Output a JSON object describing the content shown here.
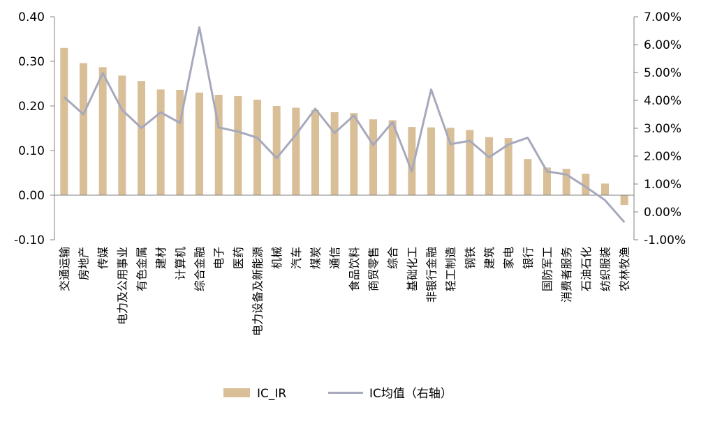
{
  "chart_data": {
    "type": "bar",
    "categories": [
      "交通运输",
      "房地产",
      "传媒",
      "电力及公用事业",
      "有色金属",
      "建材",
      "计算机",
      "综合金融",
      "电子",
      "医药",
      "电力设备及新能源",
      "机械",
      "汽车",
      "煤炭",
      "通信",
      "食品饮料",
      "商贸零售",
      "综合",
      "基础化工",
      "非银行金融",
      "轻工制造",
      "钢铁",
      "建筑",
      "家电",
      "银行",
      "国防军工",
      "消费者服务",
      "石油石化",
      "纺织服装",
      "农林牧渔"
    ],
    "series": [
      {
        "name": "IC_IR",
        "type": "bar",
        "axis": "left",
        "color": "#D9BF98",
        "values": [
          0.33,
          0.296,
          0.287,
          0.268,
          0.256,
          0.237,
          0.236,
          0.23,
          0.225,
          0.222,
          0.214,
          0.2,
          0.196,
          0.191,
          0.186,
          0.184,
          0.17,
          0.168,
          0.153,
          0.152,
          0.151,
          0.146,
          0.13,
          0.128,
          0.081,
          0.062,
          0.059,
          0.048,
          0.026,
          -0.022
        ]
      },
      {
        "name": "IC均值（右轴）",
        "type": "line",
        "axis": "right",
        "color": "#A6A9BC",
        "values": [
          0.0412,
          0.035,
          0.0498,
          0.0366,
          0.0301,
          0.0357,
          0.0319,
          0.0662,
          0.0303,
          0.0288,
          0.0266,
          0.0193,
          0.0277,
          0.037,
          0.0283,
          0.0346,
          0.024,
          0.0322,
          0.0145,
          0.0439,
          0.0243,
          0.0255,
          0.0196,
          0.0242,
          0.0266,
          0.0145,
          0.0134,
          0.009,
          0.0042,
          -0.0037
        ]
      }
    ],
    "y_left": {
      "min": -0.1,
      "max": 0.4,
      "ticks": [
        -0.1,
        0.0,
        0.1,
        0.2,
        0.3,
        0.4
      ],
      "tick_labels": [
        "-0.10",
        "0.00",
        "0.10",
        "0.20",
        "0.30",
        "0.40"
      ]
    },
    "y_right": {
      "min": -0.01,
      "max": 0.07,
      "ticks": [
        -0.01,
        0.0,
        0.01,
        0.02,
        0.03,
        0.04,
        0.05,
        0.06,
        0.07
      ],
      "tick_labels": [
        "-1.00%",
        "0.00%",
        "1.00%",
        "2.00%",
        "3.00%",
        "4.00%",
        "5.00%",
        "6.00%",
        "7.00%"
      ]
    },
    "legend": {
      "position": "bottom",
      "items": [
        "IC_IR",
        "IC均值（右轴）"
      ]
    },
    "grid": false
  }
}
